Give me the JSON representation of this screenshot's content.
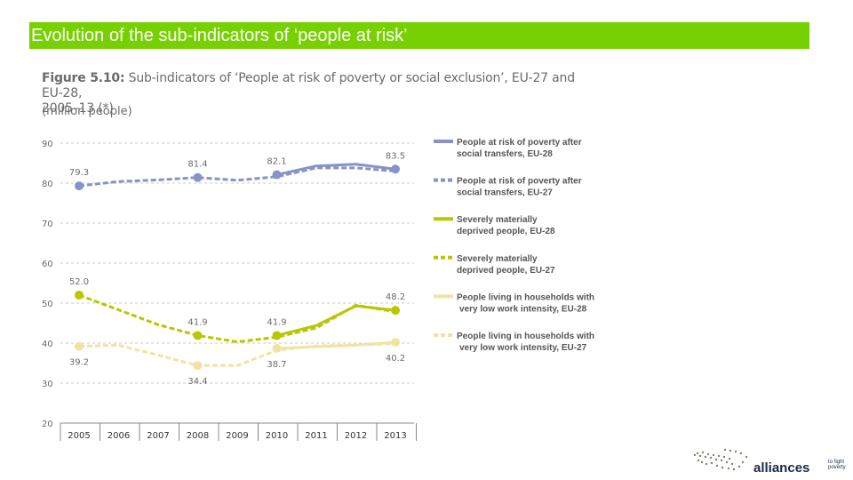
{
  "slide": {
    "title": "Evolution of the sub-indicators of ‘people at risk’"
  },
  "figure": {
    "label": "Figure 5.10:",
    "title_rest": "Sub-indicators of ‘People at risk of poverty or social exclusion’, EU-27 and EU-28,",
    "title_line2": "2005–13 (*)",
    "subtitle": "(million people)"
  },
  "logo": {
    "name": "alliances",
    "tagline_1": "to fight",
    "tagline_2": "poverty"
  },
  "chart_data": {
    "type": "line",
    "title": "Sub-indicators of ‘People at risk of poverty or social exclusion’, EU-27 and EU-28, 2005–13 (*)",
    "ylabel": "(million people)",
    "ylim": [
      20,
      90
    ],
    "yticks": [
      20,
      30,
      40,
      50,
      60,
      70,
      80,
      90
    ],
    "categories": [
      "2005",
      "2006",
      "2007",
      "2008",
      "2009",
      "2010",
      "2011",
      "2012",
      "2013"
    ],
    "grid": true,
    "legend_position": "right",
    "series": [
      {
        "name": "People at risk of poverty after social transfers, EU-28",
        "legend_line1": "People at risk of poverty after",
        "legend_line2": "social transfers, EU-28",
        "color": "#8793c6",
        "dashed": false,
        "values": [
          null,
          null,
          null,
          null,
          null,
          82.1,
          84.3,
          84.7,
          83.5
        ]
      },
      {
        "name": "People at risk of poverty after social transfers, EU-27",
        "legend_line1": "People at risk of poverty after",
        "legend_line2": "social transfers, EU-27",
        "color": "#8793c6",
        "dashed": true,
        "values": [
          79.3,
          80.4,
          80.8,
          81.4,
          80.7,
          81.6,
          83.8,
          83.8,
          83.0
        ]
      },
      {
        "name": "Severely materially deprived people, EU-28",
        "legend_line1": "Severely materially",
        "legend_line2": "deprived people, EU-28",
        "color": "#b7c800",
        "dashed": false,
        "values": [
          null,
          null,
          null,
          null,
          null,
          41.9,
          44.4,
          49.3,
          48.2
        ]
      },
      {
        "name": "Severely materially deprived people, EU-27",
        "legend_line1": "Severely materially",
        "legend_line2": "deprived people, EU-27",
        "color": "#b7c800",
        "dashed": true,
        "values": [
          52.0,
          48.3,
          44.6,
          41.9,
          40.3,
          41.5,
          43.8,
          49.5,
          47.8
        ]
      },
      {
        "name": "People living in households with very low work intensity, EU-28",
        "legend_line1": "People living in households with",
        "legend_line2": "very low work intensity, EU-28",
        "color": "#f1e3a3",
        "dashed": false,
        "values": [
          null,
          null,
          null,
          null,
          null,
          38.7,
          39.1,
          39.5,
          40.2
        ]
      },
      {
        "name": "People living in households with very low work intensity, EU-27",
        "legend_line1": "People living in households with",
        "legend_line2": "very low work intensity, EU-27",
        "color": "#f1e3a3",
        "dashed": true,
        "values": [
          39.2,
          39.5,
          37.0,
          34.4,
          34.4,
          38.2,
          39.3,
          39.5,
          39.9
        ]
      }
    ],
    "markers": [
      {
        "series": 1,
        "x": "2005",
        "y": 79.3,
        "label": "79.3",
        "pos": "above"
      },
      {
        "series": 1,
        "x": "2008",
        "y": 81.4,
        "label": "81.4",
        "pos": "above"
      },
      {
        "series": 0,
        "x": "2010",
        "y": 82.1,
        "label": "82.1",
        "pos": "above"
      },
      {
        "series": 0,
        "x": "2013",
        "y": 83.5,
        "label": "83.5",
        "pos": "above"
      },
      {
        "series": 3,
        "x": "2005",
        "y": 52.0,
        "label": "52.0",
        "pos": "above"
      },
      {
        "series": 3,
        "x": "2008",
        "y": 41.9,
        "label": "41.9",
        "pos": "above"
      },
      {
        "series": 2,
        "x": "2010",
        "y": 41.9,
        "label": "41.9",
        "pos": "above"
      },
      {
        "series": 2,
        "x": "2013",
        "y": 48.2,
        "label": "48.2",
        "pos": "above"
      },
      {
        "series": 5,
        "x": "2005",
        "y": 39.2,
        "label": "39.2",
        "pos": "below"
      },
      {
        "series": 5,
        "x": "2008",
        "y": 34.4,
        "label": "34.4",
        "pos": "below"
      },
      {
        "series": 4,
        "x": "2010",
        "y": 38.7,
        "label": "38.7",
        "pos": "below"
      },
      {
        "series": 4,
        "x": "2013",
        "y": 40.2,
        "label": "40.2",
        "pos": "below"
      }
    ]
  }
}
